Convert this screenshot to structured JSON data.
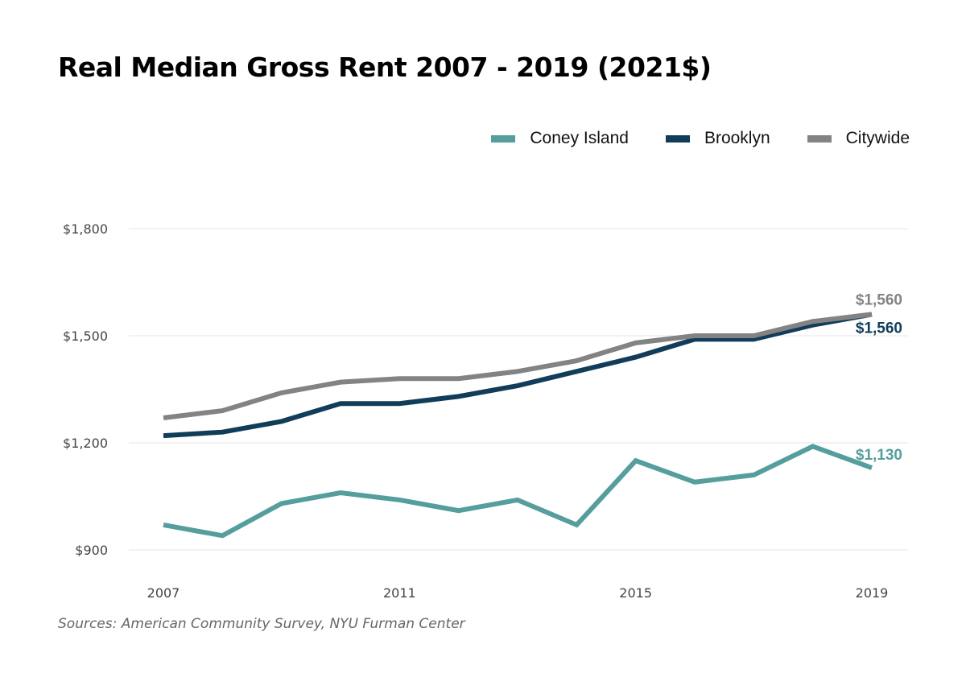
{
  "title": "Real Median Gross Rent 2007 - 2019 (2021$)",
  "source": "Sources: American Community Survey, NYU Furman Center",
  "legend": [
    {
      "label": "Coney Island",
      "color": "#569e9e"
    },
    {
      "label": "Brooklyn",
      "color": "#123d5a"
    },
    {
      "label": "Citywide",
      "color": "#838383"
    }
  ],
  "chart_data": {
    "type": "line",
    "title": "Real Median Gross Rent 2007 - 2019 (2021$)",
    "xlabel": "",
    "ylabel": "",
    "x": [
      2007,
      2008,
      2009,
      2010,
      2011,
      2012,
      2013,
      2014,
      2015,
      2016,
      2017,
      2018,
      2019
    ],
    "xlim": [
      2007,
      2019
    ],
    "ylim": [
      900,
      1800
    ],
    "yticks": [
      900,
      1200,
      1500,
      1800
    ],
    "ytick_labels": [
      "$900",
      "$1,200",
      "$1,500",
      "$1,800"
    ],
    "xticks": [
      2007,
      2011,
      2015,
      2019
    ],
    "xtick_labels": [
      "2007",
      "2011",
      "2015",
      "2019"
    ],
    "grid": true,
    "legend_position": "top-right",
    "series": [
      {
        "name": "Coney Island",
        "color": "#569e9e",
        "values": [
          970,
          940,
          1030,
          1060,
          1040,
          1010,
          1040,
          970,
          1150,
          1090,
          1110,
          1190,
          1130
        ],
        "end_label": "$1,130"
      },
      {
        "name": "Brooklyn",
        "color": "#123d5a",
        "values": [
          1220,
          1230,
          1260,
          1310,
          1310,
          1330,
          1360,
          1400,
          1440,
          1490,
          1490,
          1530,
          1560
        ],
        "end_label": "$1,560"
      },
      {
        "name": "Citywide",
        "color": "#838383",
        "values": [
          1270,
          1290,
          1340,
          1370,
          1380,
          1380,
          1400,
          1430,
          1480,
          1500,
          1500,
          1540,
          1560
        ],
        "end_label": "$1,560"
      }
    ]
  }
}
